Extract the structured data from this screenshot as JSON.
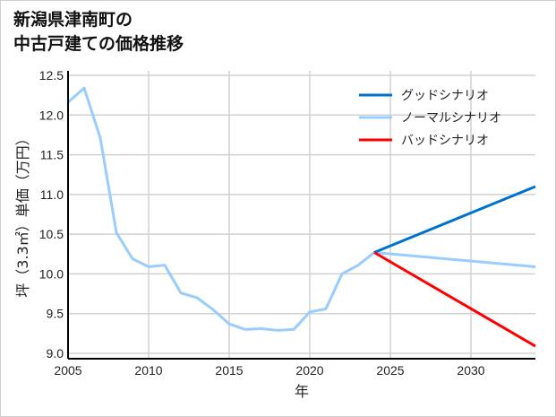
{
  "chart_data": {
    "type": "line",
    "title": [
      "新潟県津南町の",
      "中古戸建ての価格推移"
    ],
    "xlabel": "年",
    "ylabel": "坪（3.3㎡）単価（万円）",
    "xlim": [
      2005,
      2034
    ],
    "ylim": [
      9.0,
      12.5
    ],
    "xticks": [
      "2005",
      "2010",
      "2015",
      "2020",
      "2025",
      "2030"
    ],
    "yticks": [
      "9.0",
      "9.5",
      "10.0",
      "10.5",
      "11.0",
      "11.5",
      "12.0",
      "12.5"
    ],
    "grid": true,
    "legend_position": "top-right",
    "series": [
      {
        "name": "グッドシナリオ",
        "color": "#0072CE",
        "x": [
          2024,
          2034
        ],
        "y": [
          10.27,
          11.1
        ]
      },
      {
        "name": "ノーマルシナリオ",
        "color": "#99CCFF",
        "x": [
          2005,
          2006,
          2007,
          2008,
          2009,
          2010,
          2011,
          2012,
          2013,
          2014,
          2015,
          2016,
          2017,
          2018,
          2019,
          2020,
          2021,
          2022,
          2023,
          2024,
          2034
        ],
        "y": [
          12.16,
          12.34,
          11.71,
          10.52,
          10.19,
          10.09,
          10.11,
          9.76,
          9.7,
          9.55,
          9.37,
          9.3,
          9.31,
          9.29,
          9.3,
          9.52,
          9.56,
          10.0,
          10.11,
          10.27,
          10.09
        ]
      },
      {
        "name": "バッドシナリオ",
        "color": "#FF0000",
        "x": [
          2024,
          2034
        ],
        "y": [
          10.27,
          9.09
        ]
      }
    ]
  }
}
